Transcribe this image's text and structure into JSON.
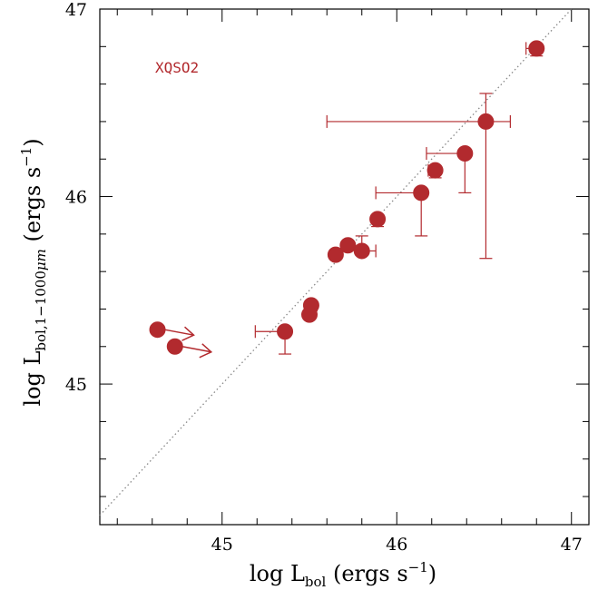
{
  "chart_data": {
    "type": "scatter",
    "xlabel": {
      "main": "log L",
      "sub": "bol",
      "unit": "(ergs s",
      "sup": "−1",
      "close": ")"
    },
    "ylabel": {
      "main": "log L",
      "sub": "bol,1−1000",
      "subGreek": "μ",
      "subEnd": "m",
      "unit": "(ergs s",
      "sup": "−1",
      "close": ")"
    },
    "annotation": "XQSO2",
    "xlim": [
      44.3,
      47.1
    ],
    "ylim": [
      44.25,
      47.0
    ],
    "x_ticks": [
      "45",
      "46",
      "47"
    ],
    "y_ticks": [
      "45",
      "46",
      "47"
    ],
    "colors": {
      "marker": "#b22a2e",
      "reference_line": "#888888"
    },
    "reference_line": "y = x (dotted)",
    "points": [
      {
        "x": 46.8,
        "y": 46.79,
        "xerr": [
          0.06,
          0
        ],
        "yerr": [
          0.04,
          0
        ]
      },
      {
        "x": 46.51,
        "y": 46.4,
        "xerr": [
          0.91,
          0.14
        ],
        "yerr": [
          0.73,
          0.15
        ]
      },
      {
        "x": 46.39,
        "y": 46.23,
        "xerr": [
          0.22,
          0
        ],
        "yerr": [
          0.21,
          0
        ]
      },
      {
        "x": 46.22,
        "y": 46.14,
        "xerr": [
          0.04,
          0
        ],
        "yerr": [
          0.04,
          0
        ]
      },
      {
        "x": 46.14,
        "y": 46.02,
        "xerr": [
          0.26,
          0
        ],
        "yerr": [
          0.23,
          0
        ]
      },
      {
        "x": 45.89,
        "y": 45.88,
        "xerr": [
          0,
          0
        ],
        "yerr": [
          0.04,
          0
        ]
      },
      {
        "x": 45.8,
        "y": 45.71,
        "xerr": [
          0,
          0.08
        ],
        "yerr": [
          0,
          0.08
        ]
      },
      {
        "x": 45.72,
        "y": 45.74,
        "xerr": [
          0,
          0
        ],
        "yerr": [
          0,
          0
        ]
      },
      {
        "x": 45.65,
        "y": 45.69,
        "xerr": [
          0.02,
          0
        ],
        "yerr": [
          0.02,
          0
        ]
      },
      {
        "x": 45.51,
        "y": 45.42,
        "xerr": [
          0.02,
          0
        ],
        "yerr": [
          0.03,
          0
        ]
      },
      {
        "x": 45.5,
        "y": 45.37,
        "xerr": [
          0.02,
          0
        ],
        "yerr": [
          0.02,
          0
        ]
      },
      {
        "x": 45.36,
        "y": 45.28,
        "xerr": [
          0.17,
          0
        ],
        "yerr": [
          0.12,
          0
        ]
      },
      {
        "x": 44.63,
        "y": 45.29,
        "xerr": [
          0,
          0
        ],
        "yerr": [
          0,
          0
        ],
        "limit": true
      },
      {
        "x": 44.73,
        "y": 45.2,
        "xerr": [
          0,
          0
        ],
        "yerr": [
          0,
          0
        ],
        "limit": true
      }
    ]
  }
}
